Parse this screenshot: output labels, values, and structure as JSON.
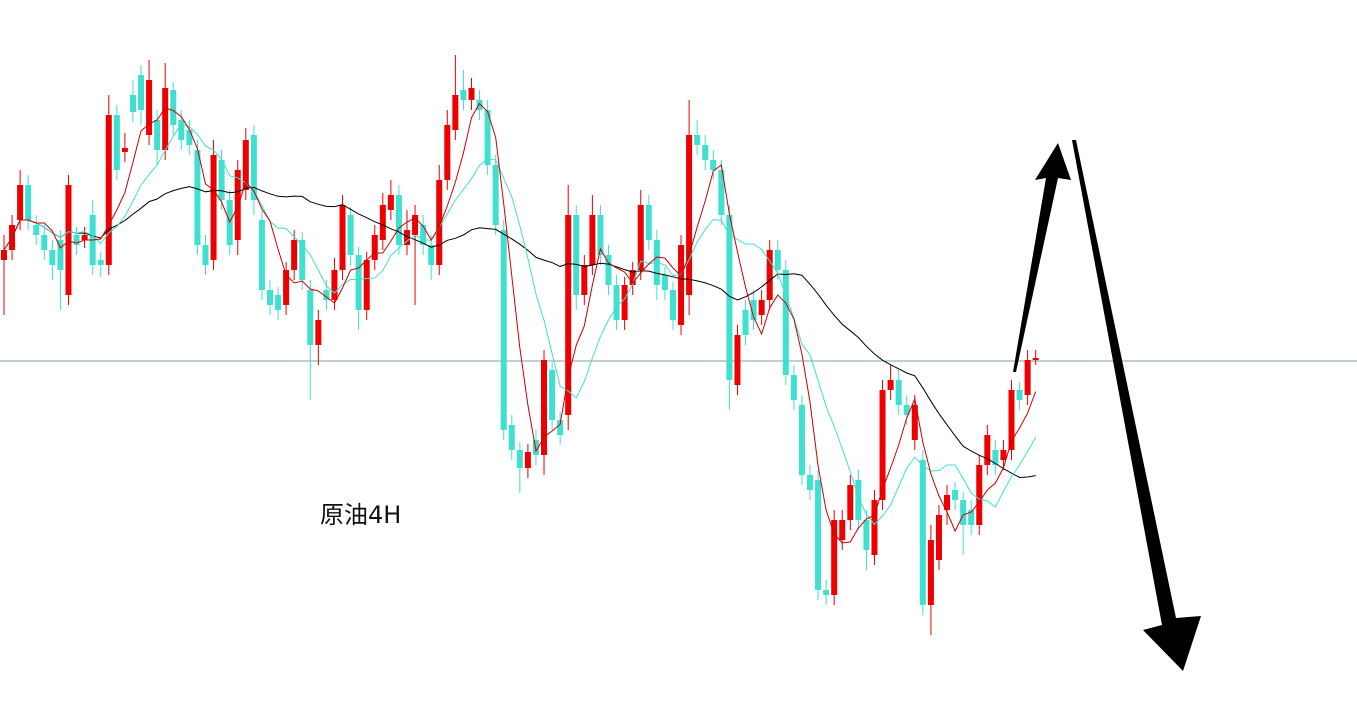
{
  "chart_data": {
    "type": "candlestick",
    "annotation": "原油4H",
    "ylim": [
      0,
      700
    ],
    "reference_line": 339,
    "reference_color": "#7fa0a0",
    "up_color": "#ee0000",
    "down_color": "#40e0d0",
    "open": [
      440,
      450,
      480,
      515,
      475,
      465,
      450,
      460,
      405,
      465,
      460,
      485,
      440,
      435,
      585,
      548,
      605,
      625,
      565,
      580,
      550,
      610,
      580,
      570,
      550,
      455,
      440,
      540,
      500,
      460,
      510,
      565,
      480,
      410,
      405,
      395,
      430,
      460,
      410,
      355,
      410,
      400,
      430,
      485,
      445,
      390,
      440,
      460,
      490,
      505,
      455,
      465,
      475,
      455,
      435,
      520,
      570,
      610,
      600,
      600,
      590,
      535,
      470,
      275,
      250,
      232,
      260,
      245,
      330,
      280,
      285,
      485,
      405,
      435,
      485,
      445,
      415,
      380,
      415,
      430,
      495,
      460,
      425,
      410,
      375,
      405,
      565,
      555,
      540,
      530,
      485,
      315,
      390,
      400,
      385,
      400,
      450,
      430,
      325,
      295,
      225,
      220,
      110,
      105,
      160,
      180,
      220,
      180,
      145,
      200,
      310,
      320,
      295,
      260,
      240,
      95,
      140,
      190,
      210,
      200,
      190,
      175,
      235,
      250,
      240,
      250,
      310,
      305,
      340
    ],
    "high": [
      465,
      485,
      530,
      525,
      485,
      475,
      460,
      470,
      525,
      473,
      473,
      500,
      448,
      605,
      595,
      567,
      620,
      635,
      640,
      590,
      637,
      618,
      590,
      580,
      560,
      465,
      560,
      550,
      510,
      540,
      572,
      575,
      490,
      420,
      413,
      438,
      470,
      468,
      420,
      390,
      420,
      442,
      505,
      493,
      453,
      448,
      475,
      507,
      520,
      515,
      490,
      495,
      485,
      465,
      535,
      590,
      645,
      630,
      622,
      610,
      600,
      545,
      480,
      285,
      258,
      256,
      270,
      350,
      338,
      288,
      515,
      495,
      445,
      505,
      495,
      455,
      425,
      423,
      438,
      510,
      505,
      470,
      433,
      418,
      465,
      600,
      580,
      565,
      550,
      540,
      495,
      375,
      400,
      410,
      410,
      460,
      460,
      440,
      335,
      305,
      235,
      230,
      120,
      190,
      190,
      225,
      230,
      190,
      210,
      320,
      335,
      330,
      305,
      305,
      250,
      175,
      195,
      215,
      218,
      208,
      200,
      245,
      275,
      260,
      260,
      320,
      318,
      350,
      350
    ],
    "low": [
      385,
      440,
      470,
      470,
      455,
      440,
      420,
      390,
      395,
      445,
      452,
      425,
      423,
      425,
      520,
      538,
      578,
      575,
      555,
      535,
      540,
      565,
      550,
      545,
      445,
      425,
      430,
      490,
      445,
      445,
      500,
      485,
      400,
      385,
      380,
      385,
      420,
      410,
      300,
      335,
      390,
      390,
      420,
      435,
      370,
      380,
      430,
      450,
      480,
      445,
      445,
      395,
      445,
      420,
      425,
      510,
      560,
      590,
      590,
      580,
      525,
      465,
      260,
      240,
      207,
      222,
      235,
      225,
      270,
      255,
      270,
      390,
      395,
      425,
      435,
      405,
      370,
      370,
      405,
      420,
      450,
      400,
      400,
      370,
      365,
      385,
      545,
      530,
      520,
      475,
      290,
      305,
      355,
      370,
      375,
      390,
      420,
      315,
      290,
      215,
      200,
      100,
      95,
      95,
      150,
      170,
      170,
      130,
      135,
      190,
      300,
      285,
      275,
      250,
      85,
      65,
      130,
      175,
      190,
      145,
      165,
      165,
      225,
      225,
      230,
      240,
      290,
      295,
      335
    ],
    "close": [
      450,
      475,
      515,
      480,
      465,
      450,
      435,
      430,
      515,
      455,
      465,
      435,
      435,
      585,
      530,
      552,
      588,
      590,
      620,
      550,
      612,
      575,
      560,
      555,
      455,
      435,
      545,
      500,
      455,
      530,
      560,
      500,
      410,
      395,
      390,
      430,
      460,
      420,
      355,
      380,
      400,
      430,
      495,
      445,
      390,
      440,
      465,
      495,
      505,
      455,
      470,
      485,
      455,
      435,
      520,
      575,
      605,
      600,
      612,
      590,
      535,
      475,
      270,
      250,
      232,
      248,
      245,
      340,
      280,
      265,
      485,
      405,
      435,
      485,
      445,
      415,
      380,
      415,
      430,
      495,
      460,
      415,
      410,
      380,
      455,
      565,
      555,
      540,
      530,
      485,
      320,
      365,
      365,
      380,
      400,
      450,
      430,
      325,
      300,
      225,
      210,
      110,
      105,
      180,
      180,
      215,
      180,
      150,
      200,
      310,
      320,
      295,
      285,
      295,
      95,
      160,
      185,
      205,
      200,
      175,
      175,
      235,
      265,
      235,
      250,
      310,
      300,
      340,
      342
    ]
  }
}
